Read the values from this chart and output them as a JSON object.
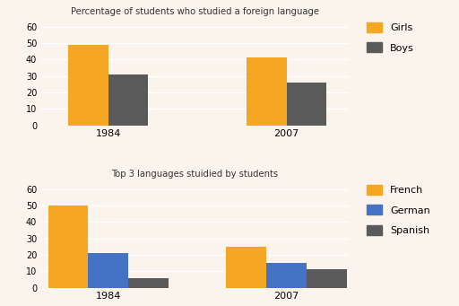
{
  "chart1": {
    "title": "Percentage of students who studied a foreign language",
    "years": [
      "1984",
      "2007"
    ],
    "girls": [
      49,
      41
    ],
    "boys": [
      31,
      26
    ],
    "colors": {
      "Girls": "#F5A623",
      "Boys": "#5A5A5A"
    },
    "ylim": [
      0,
      65
    ],
    "yticks": [
      0,
      10,
      20,
      30,
      40,
      50,
      60
    ],
    "legend_labels": [
      "Girls",
      "Boys"
    ]
  },
  "chart2": {
    "title": "Top 3 languages stuidied by students",
    "years": [
      "1984",
      "2007"
    ],
    "french": [
      50,
      25
    ],
    "german": [
      21,
      15
    ],
    "spanish": [
      6,
      11
    ],
    "colors": {
      "French": "#F5A623",
      "German": "#4472C4",
      "Spanish": "#5A5A5A"
    },
    "ylim": [
      0,
      65
    ],
    "yticks": [
      0,
      10,
      20,
      30,
      40,
      50,
      60
    ],
    "legend_labels": [
      "French",
      "German",
      "Spanish"
    ]
  },
  "background_color": "#FBF4EC",
  "bar_width": 0.18,
  "group_positions": [
    0.3,
    1.1
  ]
}
